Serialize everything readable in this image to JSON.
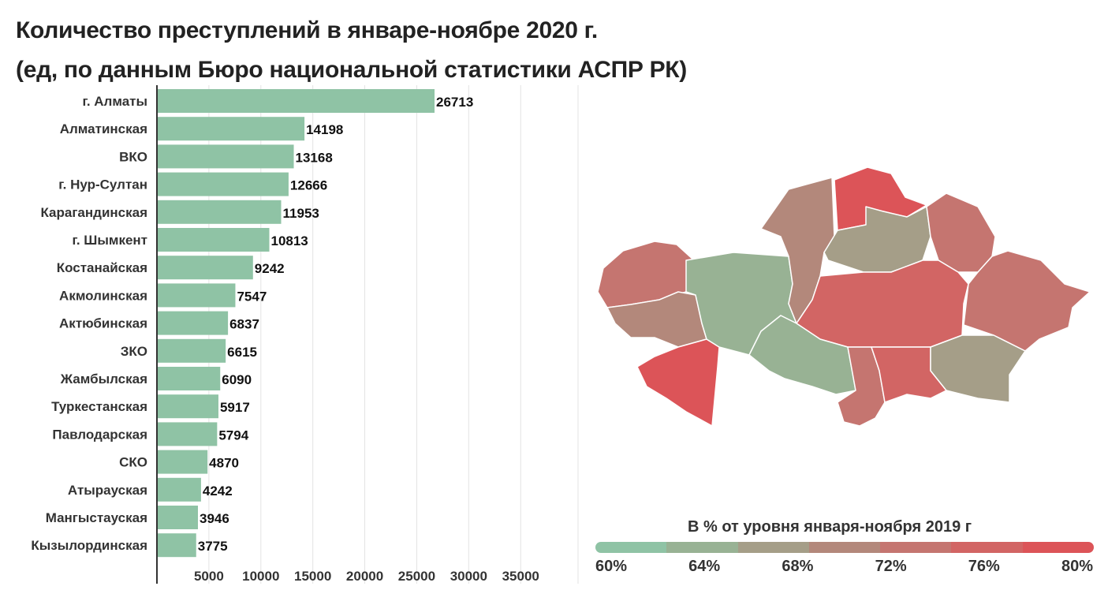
{
  "title": {
    "line1": "Количество преступлений в январе-ноябре 2020 г.",
    "line2": "(ед, по данным Бюро национальной статистики АСПР РК)"
  },
  "chart_data": [
    {
      "type": "bar",
      "orientation": "horizontal",
      "categories": [
        "г. Алматы",
        "Алматинская",
        "ВКО",
        "г. Нур-Султан",
        "Карагандинская",
        "г. Шымкент",
        "Костанайская",
        "Акмолинская",
        "Актюбинская",
        "ЗКО",
        "Жамбылская",
        "Туркестанская",
        "Павлодарская",
        "СКО",
        "Атырауская",
        "Мангыстауская",
        "Кызылординская"
      ],
      "values": [
        26713,
        14198,
        13168,
        12666,
        11953,
        10813,
        9242,
        7547,
        6837,
        6615,
        6090,
        5917,
        5794,
        4870,
        4242,
        3946,
        3775
      ],
      "xlim": [
        0,
        35000
      ],
      "x_ticks": [
        5000,
        10000,
        15000,
        20000,
        25000,
        30000,
        35000
      ],
      "bar_color": "#8fc3a5",
      "grid": true
    },
    {
      "type": "choropleth",
      "region": "Kazakhstan",
      "legend_title": "В % от уровня января-ноября 2019 г",
      "legend_ticks": [
        "60%",
        "64%",
        "68%",
        "72%",
        "76%",
        "80%"
      ],
      "color_scale": [
        "#8fc3a5",
        "#98b294",
        "#a59e88",
        "#b3887b",
        "#c57570",
        "#d26564",
        "#dc5458"
      ]
    }
  ]
}
